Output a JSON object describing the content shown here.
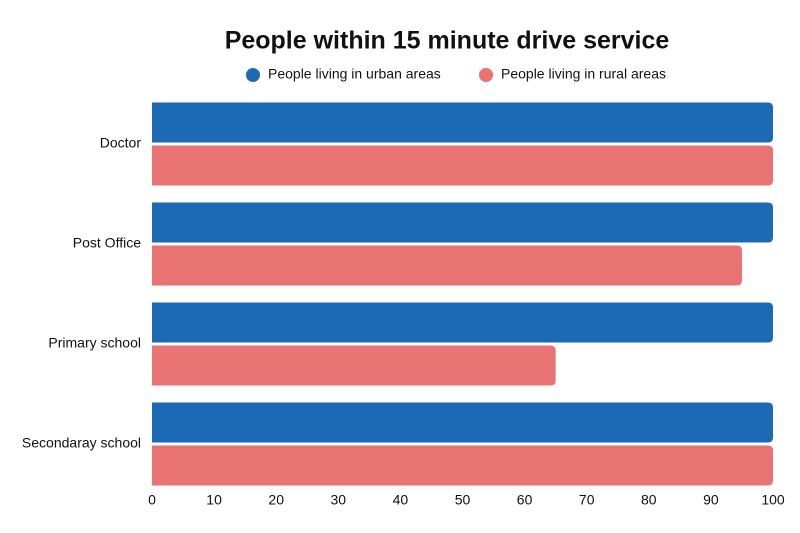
{
  "chart_data": {
    "type": "bar",
    "orientation": "horizontal",
    "title": "People within 15 minute drive service",
    "categories": [
      "Doctor",
      "Post Office",
      "Primary school",
      "Secondaray school"
    ],
    "series": [
      {
        "name": "People living in urban areas",
        "color": "#1c69b6",
        "values": [
          100,
          100,
          100,
          100
        ]
      },
      {
        "name": "People living in rural areas",
        "color": "#e97272",
        "values": [
          100,
          95,
          65,
          100
        ]
      }
    ],
    "xlim": [
      0,
      100
    ],
    "xticks": [
      0,
      10,
      20,
      30,
      40,
      50,
      60,
      70,
      80,
      90,
      100
    ],
    "grid": false
  }
}
